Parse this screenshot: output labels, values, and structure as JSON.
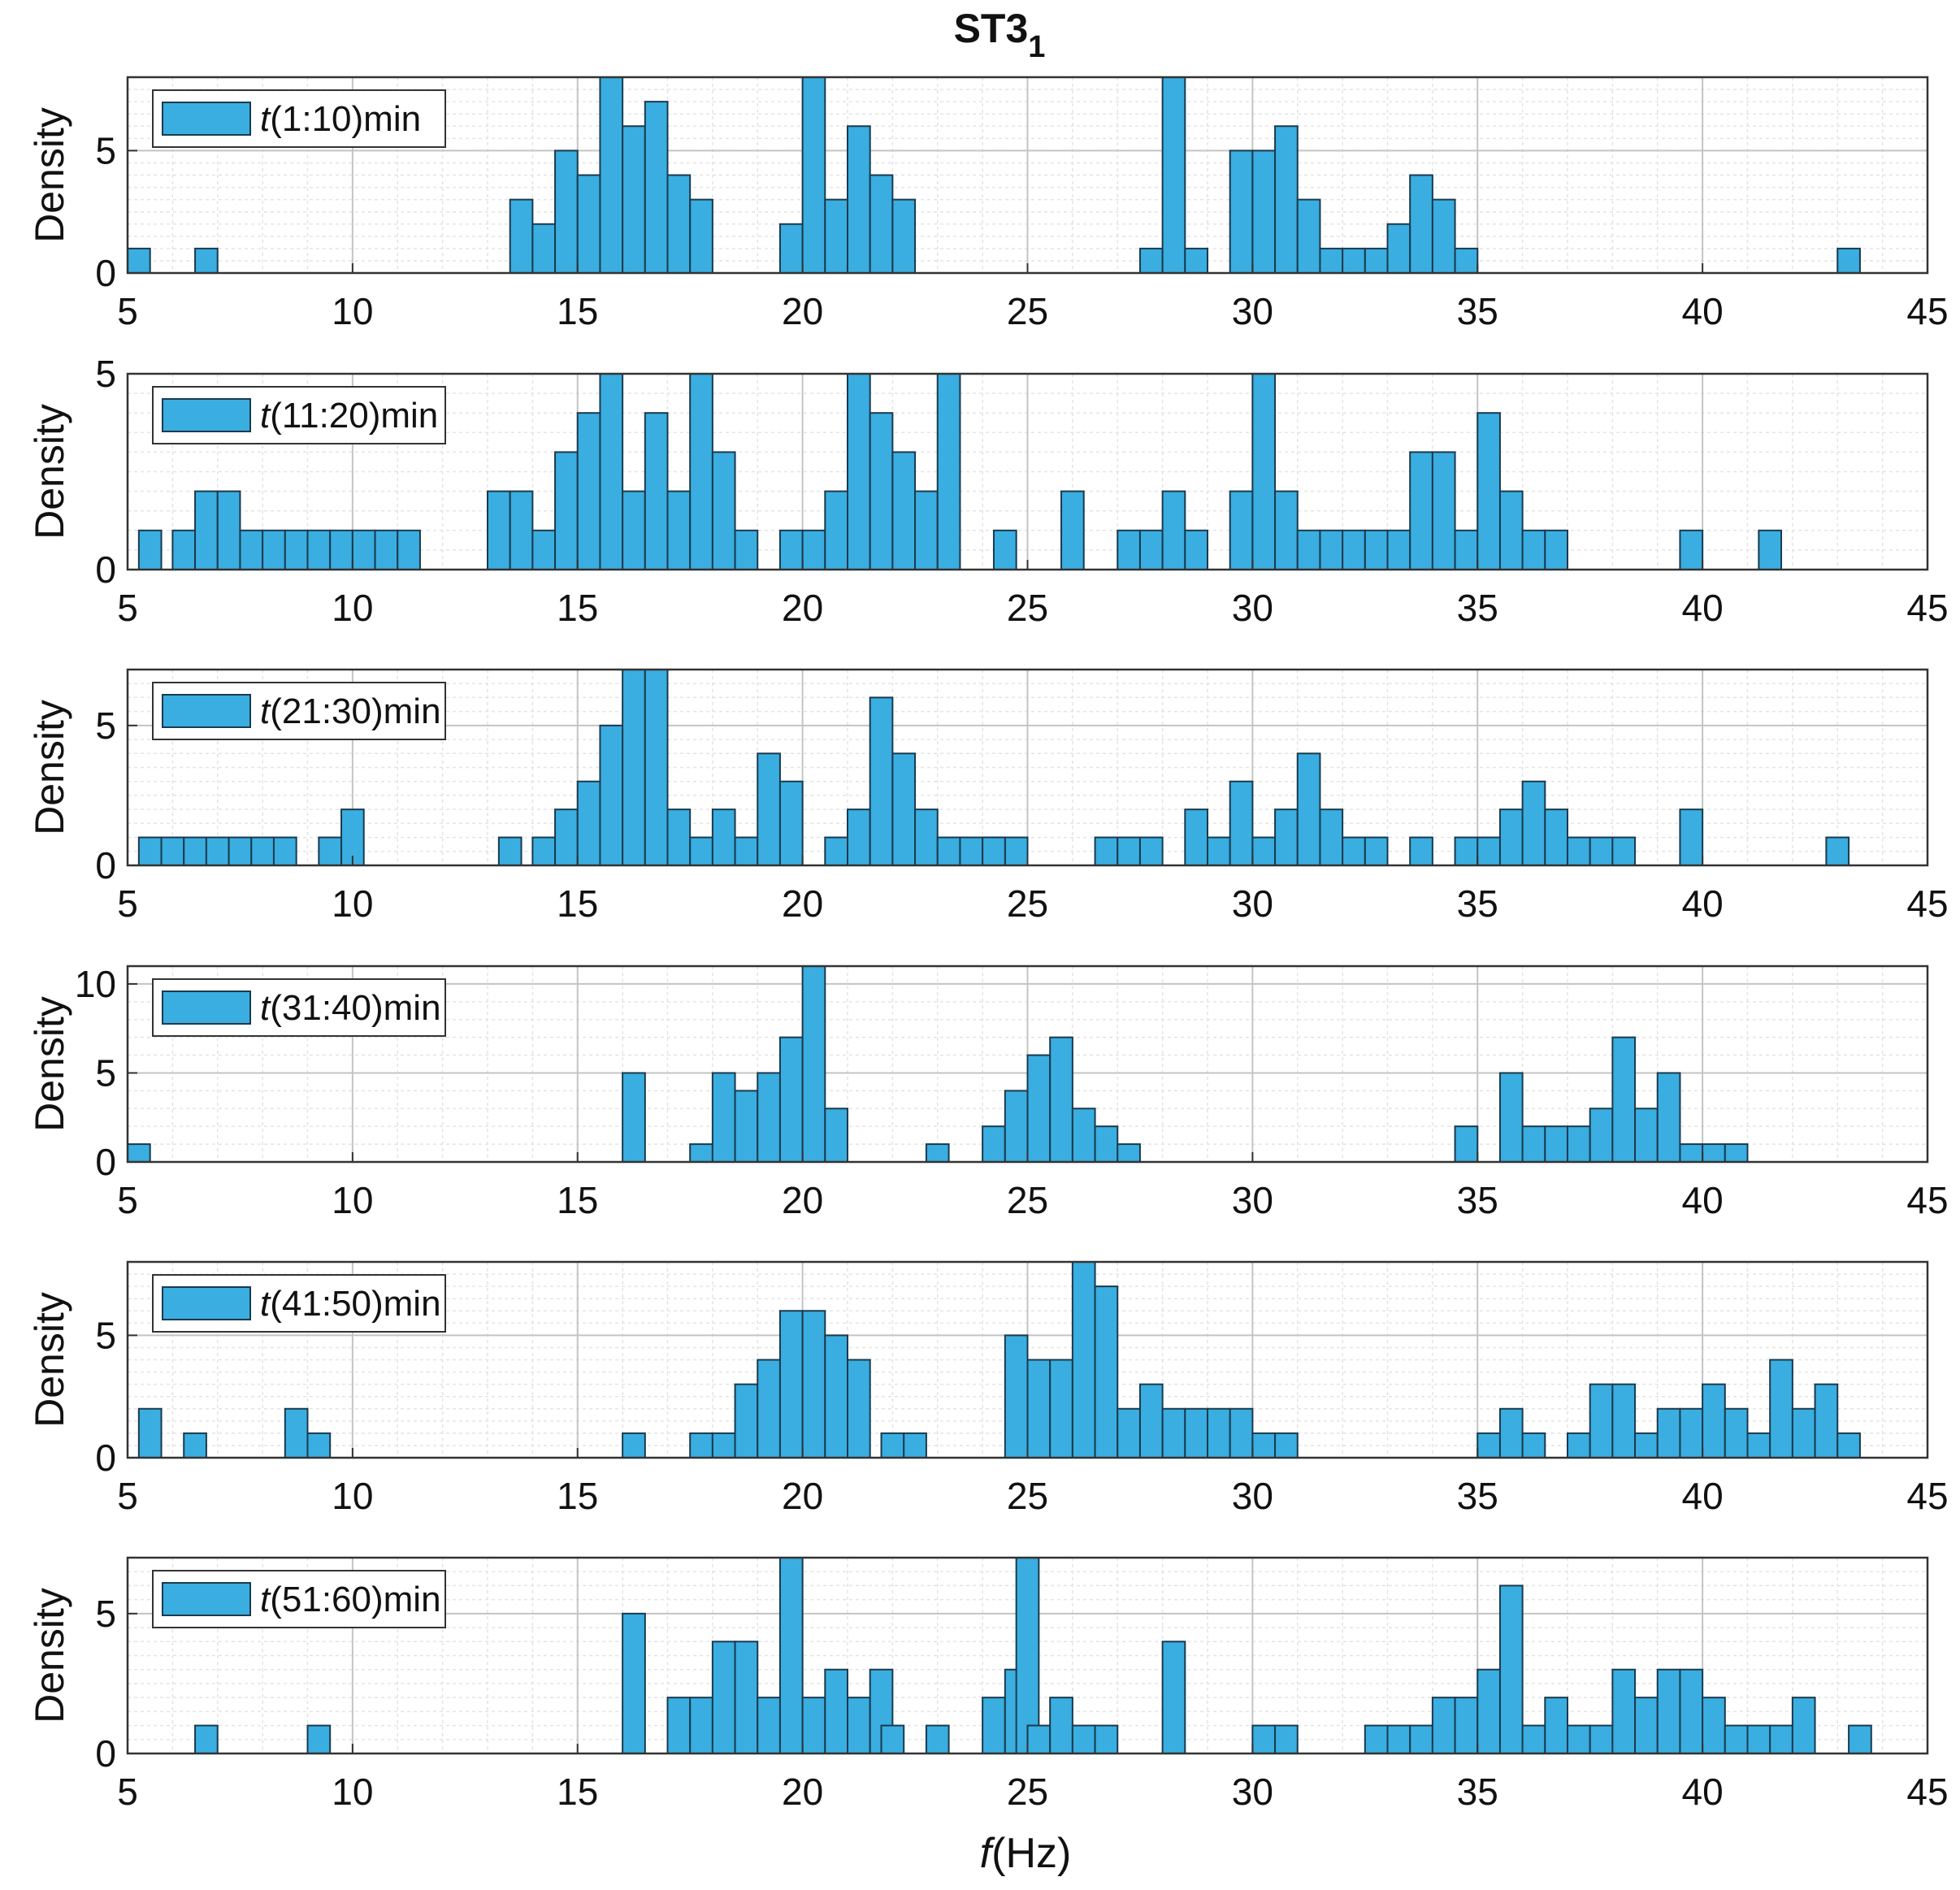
{
  "chart_data": {
    "type": "bar",
    "title_main": "ST3",
    "title_sub": "1",
    "xlabel_var": "f",
    "xlabel_unit": "(Hz)",
    "ylabel": "Density",
    "xlim": [
      5,
      45
    ],
    "xticks": [
      5,
      10,
      15,
      20,
      25,
      30,
      35,
      40,
      45
    ],
    "bin_width": 0.5,
    "bar_color": "#3aaee0",
    "bar_edge_color": "#1a3a4e",
    "grid": true,
    "panels": [
      {
        "legend_prefix": "t",
        "legend_suffix": "(1:10)min",
        "ylim": [
          0,
          8
        ],
        "yticks": [
          0,
          5
        ],
        "bins": [
          [
            5.25,
            1
          ],
          [
            6.75,
            1
          ],
          [
            13.75,
            3
          ],
          [
            14.25,
            2
          ],
          [
            14.75,
            5
          ],
          [
            15.25,
            4
          ],
          [
            15.75,
            8
          ],
          [
            16.25,
            6
          ],
          [
            16.75,
            7
          ],
          [
            17.25,
            4
          ],
          [
            17.75,
            3
          ],
          [
            19.75,
            2
          ],
          [
            20.25,
            8
          ],
          [
            20.75,
            3
          ],
          [
            21.25,
            6
          ],
          [
            21.75,
            4
          ],
          [
            22.25,
            3
          ],
          [
            27.75,
            1
          ],
          [
            28.25,
            8
          ],
          [
            28.75,
            1
          ],
          [
            29.75,
            5
          ],
          [
            30.25,
            5
          ],
          [
            30.75,
            6
          ],
          [
            31.25,
            3
          ],
          [
            31.75,
            1
          ],
          [
            32.25,
            1
          ],
          [
            32.75,
            1
          ],
          [
            33.25,
            2
          ],
          [
            33.75,
            4
          ],
          [
            34.25,
            3
          ],
          [
            34.75,
            1
          ],
          [
            43.25,
            1
          ]
        ]
      },
      {
        "legend_prefix": "t",
        "legend_suffix": "(11:20)min",
        "ylim": [
          0,
          5
        ],
        "yticks": [
          0,
          5
        ],
        "bins": [
          [
            5.5,
            1
          ],
          [
            6.25,
            1
          ],
          [
            6.75,
            2
          ],
          [
            7.25,
            2
          ],
          [
            7.75,
            1
          ],
          [
            8.25,
            1
          ],
          [
            8.75,
            1
          ],
          [
            9.25,
            1
          ],
          [
            9.75,
            1
          ],
          [
            10.25,
            1
          ],
          [
            10.75,
            1
          ],
          [
            11.25,
            1
          ],
          [
            13.25,
            2
          ],
          [
            13.75,
            2
          ],
          [
            14.25,
            1
          ],
          [
            14.75,
            3
          ],
          [
            15.25,
            4
          ],
          [
            15.75,
            5
          ],
          [
            16.25,
            2
          ],
          [
            16.75,
            4
          ],
          [
            17.25,
            2
          ],
          [
            17.75,
            5
          ],
          [
            18.25,
            3
          ],
          [
            18.75,
            1
          ],
          [
            19.75,
            1
          ],
          [
            20.25,
            1
          ],
          [
            20.75,
            2
          ],
          [
            21.25,
            5
          ],
          [
            21.75,
            4
          ],
          [
            22.25,
            3
          ],
          [
            22.75,
            2
          ],
          [
            23.25,
            5
          ],
          [
            24.5,
            1
          ],
          [
            26.0,
            2
          ],
          [
            27.25,
            1
          ],
          [
            27.75,
            1
          ],
          [
            28.25,
            2
          ],
          [
            28.75,
            1
          ],
          [
            29.75,
            2
          ],
          [
            30.25,
            5
          ],
          [
            30.75,
            2
          ],
          [
            31.25,
            1
          ],
          [
            31.75,
            1
          ],
          [
            32.25,
            1
          ],
          [
            32.75,
            1
          ],
          [
            33.25,
            1
          ],
          [
            33.75,
            3
          ],
          [
            34.25,
            3
          ],
          [
            34.75,
            1
          ],
          [
            35.25,
            4
          ],
          [
            35.75,
            2
          ],
          [
            36.25,
            1
          ],
          [
            36.75,
            1
          ],
          [
            39.75,
            1
          ],
          [
            41.5,
            1
          ]
        ]
      },
      {
        "legend_prefix": "t",
        "legend_suffix": "(21:30)min",
        "ylim": [
          0,
          7
        ],
        "yticks": [
          0,
          5
        ],
        "bins": [
          [
            5.5,
            1
          ],
          [
            6.0,
            1
          ],
          [
            6.5,
            1
          ],
          [
            7.0,
            1
          ],
          [
            7.5,
            1
          ],
          [
            8.0,
            1
          ],
          [
            8.5,
            1
          ],
          [
            9.5,
            1
          ],
          [
            10.0,
            2
          ],
          [
            13.5,
            1
          ],
          [
            14.25,
            1
          ],
          [
            14.75,
            2
          ],
          [
            15.25,
            3
          ],
          [
            15.75,
            5
          ],
          [
            16.25,
            7
          ],
          [
            16.75,
            7
          ],
          [
            17.25,
            2
          ],
          [
            17.75,
            1
          ],
          [
            18.25,
            2
          ],
          [
            18.75,
            1
          ],
          [
            19.25,
            4
          ],
          [
            19.75,
            3
          ],
          [
            20.75,
            1
          ],
          [
            21.25,
            2
          ],
          [
            21.75,
            6
          ],
          [
            22.25,
            4
          ],
          [
            22.75,
            2
          ],
          [
            23.25,
            1
          ],
          [
            23.75,
            1
          ],
          [
            24.25,
            1
          ],
          [
            24.75,
            1
          ],
          [
            24.25,
            1
          ],
          [
            26.75,
            1
          ],
          [
            27.25,
            1
          ],
          [
            27.75,
            1
          ],
          [
            28.75,
            2
          ],
          [
            29.25,
            1
          ],
          [
            29.75,
            3
          ],
          [
            30.25,
            1
          ],
          [
            30.75,
            2
          ],
          [
            31.25,
            4
          ],
          [
            31.75,
            2
          ],
          [
            32.25,
            1
          ],
          [
            32.75,
            1
          ],
          [
            33.75,
            1
          ],
          [
            34.75,
            1
          ],
          [
            35.25,
            1
          ],
          [
            35.75,
            2
          ],
          [
            36.25,
            3
          ],
          [
            36.75,
            2
          ],
          [
            37.25,
            1
          ],
          [
            37.75,
            1
          ],
          [
            38.25,
            1
          ],
          [
            39.75,
            2
          ],
          [
            43.0,
            1
          ]
        ]
      },
      {
        "legend_prefix": "t",
        "legend_suffix": "(31:40)min",
        "ylim": [
          0,
          11
        ],
        "yticks": [
          0,
          5,
          10
        ],
        "bins": [
          [
            5.25,
            1
          ],
          [
            16.25,
            5
          ],
          [
            17.75,
            1
          ],
          [
            18.25,
            5
          ],
          [
            18.75,
            4
          ],
          [
            19.25,
            5
          ],
          [
            19.75,
            7
          ],
          [
            20.25,
            11
          ],
          [
            20.75,
            3
          ],
          [
            23.0,
            1
          ],
          [
            24.25,
            2
          ],
          [
            24.75,
            4
          ],
          [
            25.25,
            6
          ],
          [
            25.75,
            7
          ],
          [
            26.25,
            3
          ],
          [
            26.75,
            2
          ],
          [
            27.25,
            1
          ],
          [
            34.75,
            2
          ],
          [
            35.75,
            5
          ],
          [
            36.25,
            2
          ],
          [
            36.75,
            2
          ],
          [
            37.25,
            2
          ],
          [
            37.75,
            3
          ],
          [
            38.25,
            7
          ],
          [
            38.75,
            3
          ],
          [
            39.25,
            5
          ],
          [
            39.75,
            1
          ],
          [
            40.25,
            1
          ],
          [
            40.75,
            1
          ]
        ]
      },
      {
        "legend_prefix": "t",
        "legend_suffix": "(41:50)min",
        "ylim": [
          0,
          8
        ],
        "yticks": [
          0,
          5
        ],
        "bins": [
          [
            5.5,
            2
          ],
          [
            6.5,
            1
          ],
          [
            8.75,
            2
          ],
          [
            9.25,
            1
          ],
          [
            16.25,
            1
          ],
          [
            17.75,
            1
          ],
          [
            18.25,
            1
          ],
          [
            18.75,
            3
          ],
          [
            19.25,
            4
          ],
          [
            19.75,
            6
          ],
          [
            20.25,
            6
          ],
          [
            20.75,
            5
          ],
          [
            21.25,
            4
          ],
          [
            22.0,
            1
          ],
          [
            22.5,
            1
          ],
          [
            24.75,
            5
          ],
          [
            25.25,
            4
          ],
          [
            25.75,
            4
          ],
          [
            26.25,
            8
          ],
          [
            26.75,
            7
          ],
          [
            27.25,
            2
          ],
          [
            27.75,
            3
          ],
          [
            28.25,
            2
          ],
          [
            28.75,
            2
          ],
          [
            29.25,
            2
          ],
          [
            29.75,
            2
          ],
          [
            30.25,
            1
          ],
          [
            30.75,
            1
          ],
          [
            35.25,
            1
          ],
          [
            35.75,
            2
          ],
          [
            36.25,
            1
          ],
          [
            37.25,
            1
          ],
          [
            37.75,
            3
          ],
          [
            38.25,
            3
          ],
          [
            38.75,
            1
          ],
          [
            39.25,
            2
          ],
          [
            39.75,
            2
          ],
          [
            40.25,
            3
          ],
          [
            40.75,
            2
          ],
          [
            41.25,
            1
          ],
          [
            41.75,
            4
          ],
          [
            42.25,
            2
          ],
          [
            42.75,
            3
          ],
          [
            43.25,
            1
          ]
        ]
      },
      {
        "legend_prefix": "t",
        "legend_suffix": "(51:60)min",
        "ylim": [
          0,
          7
        ],
        "yticks": [
          0,
          5
        ],
        "bins": [
          [
            6.75,
            1
          ],
          [
            9.25,
            1
          ],
          [
            16.25,
            5
          ],
          [
            17.25,
            2
          ],
          [
            17.75,
            2
          ],
          [
            18.25,
            4
          ],
          [
            18.75,
            4
          ],
          [
            19.25,
            2
          ],
          [
            19.75,
            7
          ],
          [
            20.25,
            2
          ],
          [
            20.75,
            3
          ],
          [
            21.25,
            2
          ],
          [
            21.75,
            3
          ],
          [
            22.0,
            1
          ],
          [
            23.0,
            1
          ],
          [
            24.25,
            2
          ],
          [
            24.75,
            3
          ],
          [
            25.0,
            7
          ],
          [
            25.25,
            1
          ],
          [
            25.75,
            2
          ],
          [
            26.25,
            1
          ],
          [
            26.75,
            1
          ],
          [
            28.25,
            4
          ],
          [
            30.25,
            1
          ],
          [
            30.75,
            1
          ],
          [
            32.75,
            1
          ],
          [
            33.25,
            1
          ],
          [
            33.75,
            1
          ],
          [
            34.25,
            2
          ],
          [
            34.75,
            2
          ],
          [
            35.25,
            3
          ],
          [
            35.75,
            6
          ],
          [
            36.25,
            1
          ],
          [
            36.75,
            2
          ],
          [
            37.25,
            1
          ],
          [
            37.75,
            1
          ],
          [
            38.25,
            3
          ],
          [
            38.75,
            2
          ],
          [
            39.25,
            3
          ],
          [
            39.75,
            3
          ],
          [
            40.25,
            2
          ],
          [
            40.75,
            1
          ],
          [
            41.25,
            1
          ],
          [
            41.75,
            1
          ],
          [
            42.25,
            2
          ],
          [
            43.5,
            1
          ]
        ]
      }
    ]
  }
}
